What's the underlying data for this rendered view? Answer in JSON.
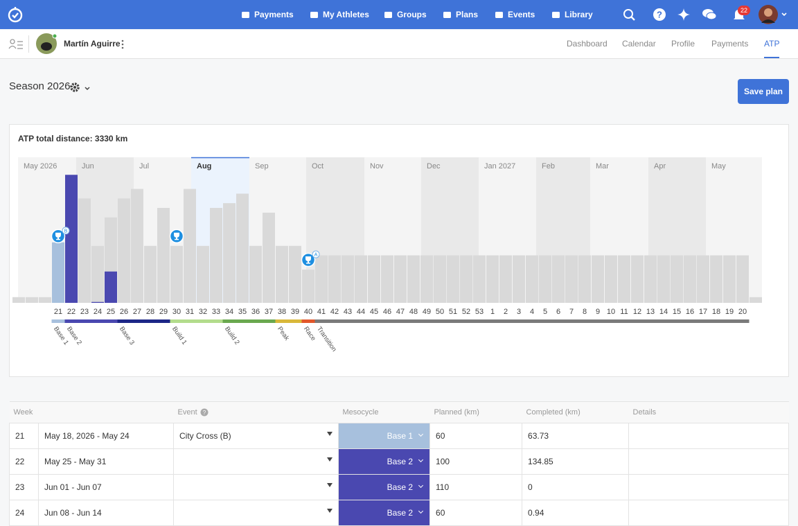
{
  "nav": {
    "items": [
      "Payments",
      "My Athletes",
      "Groups",
      "Plans",
      "Events",
      "Library"
    ],
    "notifications": "22"
  },
  "athlete": {
    "name": "Martín Aguirre",
    "tabs": [
      "Dashboard",
      "Calendar",
      "Profile",
      "Payments",
      "ATP"
    ],
    "active_tab": "ATP"
  },
  "season": {
    "title": "Season 2026",
    "button": "Save plan"
  },
  "chart_data": {
    "type": "bar",
    "title": "ATP total distance: 3330 km",
    "months": [
      "May 2026",
      "Jun",
      "Jul",
      "Aug",
      "Sep",
      "Oct",
      "Nov",
      "Dec",
      "Jan 2027",
      "Feb",
      "Mar",
      "Apr",
      "May"
    ],
    "highlighted_month": "Aug",
    "categories": [
      null,
      null,
      null,
      "21",
      "22",
      "23",
      "24",
      "25",
      "26",
      "27",
      "28",
      "29",
      "30",
      "31",
      "32",
      "33",
      "34",
      "35",
      "36",
      "37",
      "38",
      "39",
      "40",
      "41",
      "42",
      "43",
      "44",
      "45",
      "46",
      "47",
      "48",
      "49",
      "50",
      "51",
      "52",
      "53",
      "1",
      "2",
      "3",
      "4",
      "5",
      "6",
      "7",
      "8",
      "9",
      "10",
      "11",
      "12",
      "13",
      "14",
      "15",
      "16",
      "17",
      "18",
      "19",
      "20",
      null
    ],
    "planned": {
      "color": "#d9d9d9",
      "values": [
        6,
        6,
        6,
        60,
        100,
        110,
        60,
        90,
        110,
        120,
        60,
        100,
        60,
        120,
        60,
        100,
        105,
        115,
        60,
        95,
        60,
        60,
        35,
        50,
        50,
        50,
        50,
        50,
        50,
        50,
        50,
        50,
        50,
        50,
        50,
        50,
        50,
        50,
        50,
        50,
        50,
        50,
        50,
        50,
        50,
        50,
        50,
        50,
        50,
        50,
        50,
        50,
        50,
        50,
        50,
        50,
        6
      ]
    },
    "completed": {
      "values": [
        null,
        null,
        null,
        63.73,
        134.85,
        0,
        0.94,
        33,
        null,
        null,
        null,
        null,
        null,
        null,
        null,
        null,
        null,
        null,
        null,
        null,
        null,
        null,
        null,
        null,
        null,
        null,
        null,
        null,
        null,
        null,
        null,
        null,
        null,
        null,
        null,
        null,
        null,
        null,
        null,
        null,
        null,
        null,
        null,
        null,
        null,
        null,
        null,
        null,
        null,
        null,
        null,
        null,
        null,
        null,
        null,
        null,
        null
      ]
    },
    "mesocycles": [
      {
        "name": "Base 1",
        "color": "#a7c0dd",
        "start": "21"
      },
      {
        "name": "Base 2",
        "color": "#4a48b0",
        "start": "22"
      },
      {
        "name": "Base 3",
        "color": "#1d2787",
        "start": "26"
      },
      {
        "name": "Build 1",
        "color": "#b3dc8c",
        "start": "30"
      },
      {
        "name": "Build 2",
        "color": "#6aa84f",
        "start": "34"
      },
      {
        "name": "Peak",
        "color": "#d9b83a",
        "start": "38"
      },
      {
        "name": "Race",
        "color": "#e2572b",
        "start": "40"
      },
      {
        "name": "Transition",
        "color": "#7b7b7b",
        "start": "41"
      }
    ],
    "events": [
      {
        "week": "21",
        "priority": "B"
      },
      {
        "week": "30"
      },
      {
        "week": "40",
        "priority": "A"
      }
    ]
  },
  "table": {
    "columns": [
      "Week",
      "Event",
      "Mesocycle",
      "Planned (km)",
      "Completed (km)",
      "Details"
    ],
    "rows": [
      {
        "week": 21,
        "dates": "May 18, 2026 - May 24",
        "event": "City Cross (B)",
        "mesocycle": "Base 1",
        "planned": 60,
        "completed": 63.73
      },
      {
        "week": 22,
        "dates": "May 25 - May 31",
        "mesocycle": "Base 2",
        "planned": 100,
        "completed": 134.85
      },
      {
        "week": 23,
        "dates": "Jun 01 - Jun 07",
        "mesocycle": "Base 2",
        "planned": 110,
        "completed": 0
      },
      {
        "week": 24,
        "dates": "Jun 08 - Jun 14",
        "mesocycle": "Base 2",
        "planned": 60,
        "completed": 0.94
      }
    ]
  }
}
